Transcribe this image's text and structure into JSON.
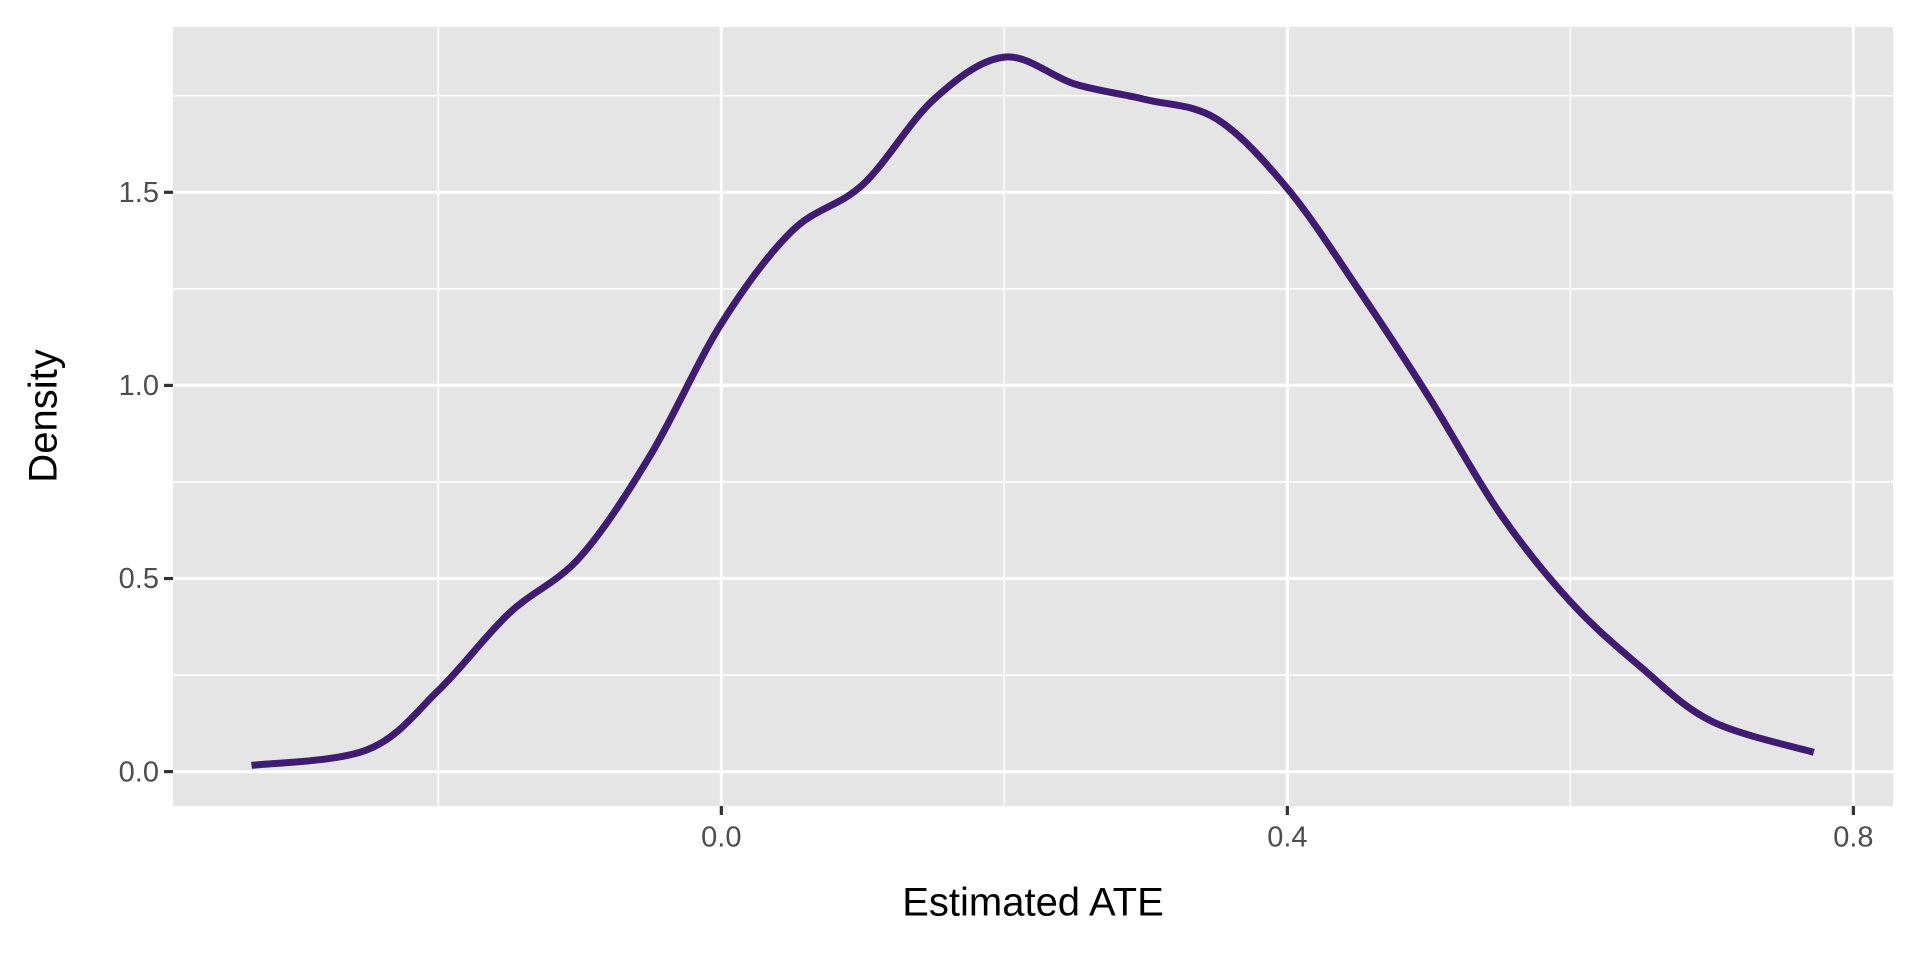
{
  "chart_data": {
    "type": "line",
    "x_label": "Estimated ATE",
    "y_label": "Density",
    "series": [
      {
        "color": "#3f1b71",
        "x": [
          -0.332,
          -0.25,
          -0.2,
          -0.15,
          -0.1,
          -0.05,
          0.0,
          0.05,
          0.1,
          0.15,
          0.2,
          0.25,
          0.3,
          0.35,
          0.4,
          0.45,
          0.5,
          0.55,
          0.6,
          0.65,
          0.7,
          0.772
        ],
        "values": [
          0.016,
          0.057,
          0.21,
          0.41,
          0.555,
          0.82,
          1.16,
          1.4,
          1.52,
          1.74,
          1.85,
          1.78,
          1.74,
          1.69,
          1.51,
          1.25,
          0.97,
          0.67,
          0.44,
          0.27,
          0.13,
          0.05
        ]
      }
    ],
    "xlim": [
      -0.3875,
      0.828
    ],
    "ylim": [
      -0.089,
      1.928
    ],
    "xticks": [
      {
        "value": 0.0,
        "label": "0.0"
      },
      {
        "value": 0.4,
        "label": "0.4"
      },
      {
        "value": 0.8,
        "label": "0.8"
      }
    ],
    "yticks": [
      {
        "value": 0.0,
        "label": "0.0"
      },
      0.5,
      {
        "value": 1.0,
        "label": "1.0"
      },
      1.5
    ],
    "x_minor_ticks": [
      -0.2,
      0.2,
      0.6
    ],
    "y_minor_ticks": [
      0.25,
      0.75,
      1.25,
      1.75
    ],
    "grid": true,
    "panel_color": "#e5e5e5"
  }
}
